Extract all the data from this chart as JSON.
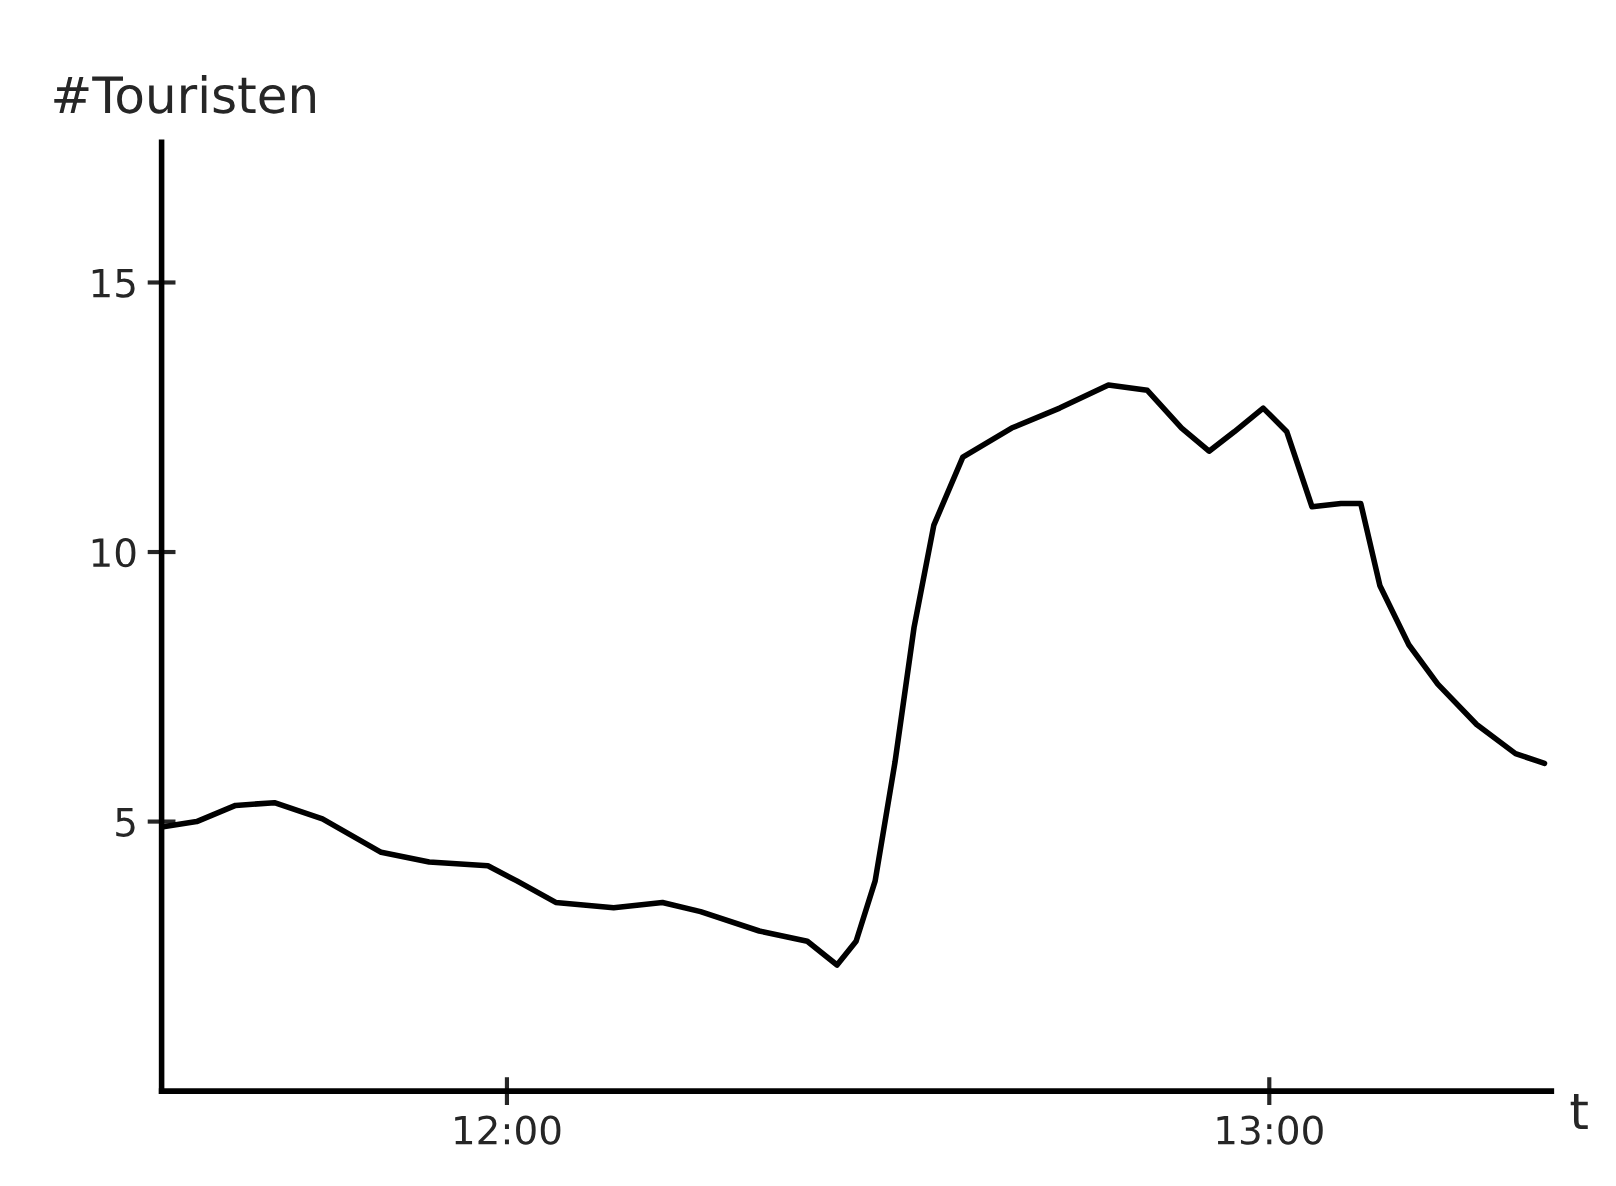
{
  "chart_data": {
    "type": "line",
    "xlabel": "t",
    "ylabel": "#Touristen",
    "x": [
      11.547,
      11.593,
      11.644,
      11.695,
      11.758,
      11.835,
      11.898,
      11.975,
      12.013,
      12.064,
      12.14,
      12.204,
      12.254,
      12.331,
      12.394,
      12.433,
      12.458,
      12.483,
      12.509,
      12.534,
      12.56,
      12.598,
      12.662,
      12.725,
      12.789,
      12.84,
      12.885,
      12.921,
      12.954,
      12.992,
      13.023,
      13.056,
      13.094,
      13.12,
      13.145,
      13.183,
      13.221,
      13.272,
      13.323,
      13.361
    ],
    "series": [
      {
        "color": "#000000",
        "values": [
          4.9,
          5.0,
          5.3,
          5.35,
          5.05,
          4.43,
          4.25,
          4.18,
          3.9,
          3.5,
          3.4,
          3.5,
          3.33,
          2.97,
          2.78,
          2.34,
          2.78,
          3.9,
          6.1,
          8.6,
          10.5,
          11.76,
          12.3,
          12.67,
          13.1,
          13.0,
          12.3,
          11.87,
          12.23,
          12.67,
          12.23,
          10.84,
          10.9,
          10.9,
          9.38,
          8.28,
          7.55,
          6.8,
          6.26,
          6.08
        ]
      }
    ],
    "xlim": [
      11.547,
      13.37
    ],
    "ylim": [
      0,
      17.6
    ],
    "xticks": [
      {
        "value": 12,
        "label": "12:00"
      },
      {
        "value": 13,
        "label": "13:00"
      }
    ],
    "yticks": [
      5,
      10,
      15
    ],
    "grid": false,
    "legend": false,
    "marker": "none",
    "line_style": "solid"
  }
}
